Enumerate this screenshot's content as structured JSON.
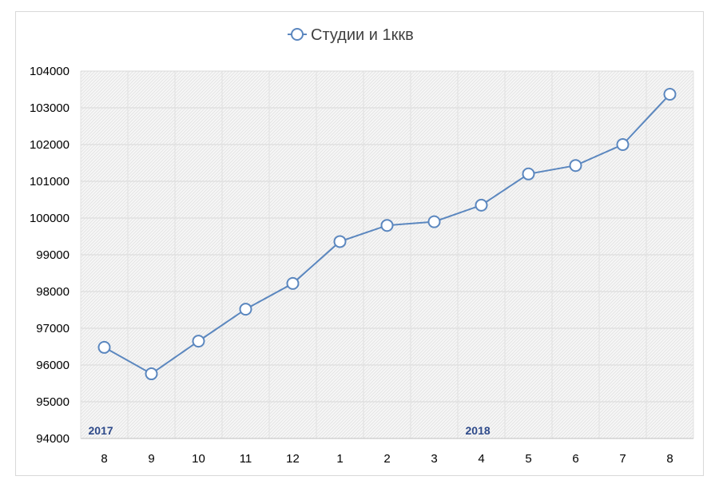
{
  "chart_data": {
    "type": "line",
    "title": "",
    "legend": {
      "position": "top-center",
      "entries": [
        "Студии и 1ккв"
      ]
    },
    "categories": [
      "8",
      "9",
      "10",
      "11",
      "12",
      "1",
      "2",
      "3",
      "4",
      "5",
      "6",
      "7",
      "8"
    ],
    "year_labels": [
      {
        "label": "2017",
        "category_index": 0
      },
      {
        "label": "2018",
        "category_index": 8
      }
    ],
    "series": [
      {
        "name": "Студии и 1ккв",
        "color": "#5b87bf",
        "marker": "circle-hollow",
        "values": [
          96480,
          95760,
          96650,
          97520,
          98220,
          99360,
          99800,
          99900,
          100350,
          101200,
          101430,
          102000,
          103370
        ]
      }
    ],
    "y_ticks": [
      "94000",
      "95000",
      "96000",
      "97000",
      "98000",
      "99000",
      "100000",
      "101000",
      "102000",
      "103000",
      "104000"
    ],
    "ylim": [
      94000,
      104000
    ],
    "xlabel": "",
    "ylabel": "",
    "grid": true,
    "plot_background": "hatched-gray"
  }
}
